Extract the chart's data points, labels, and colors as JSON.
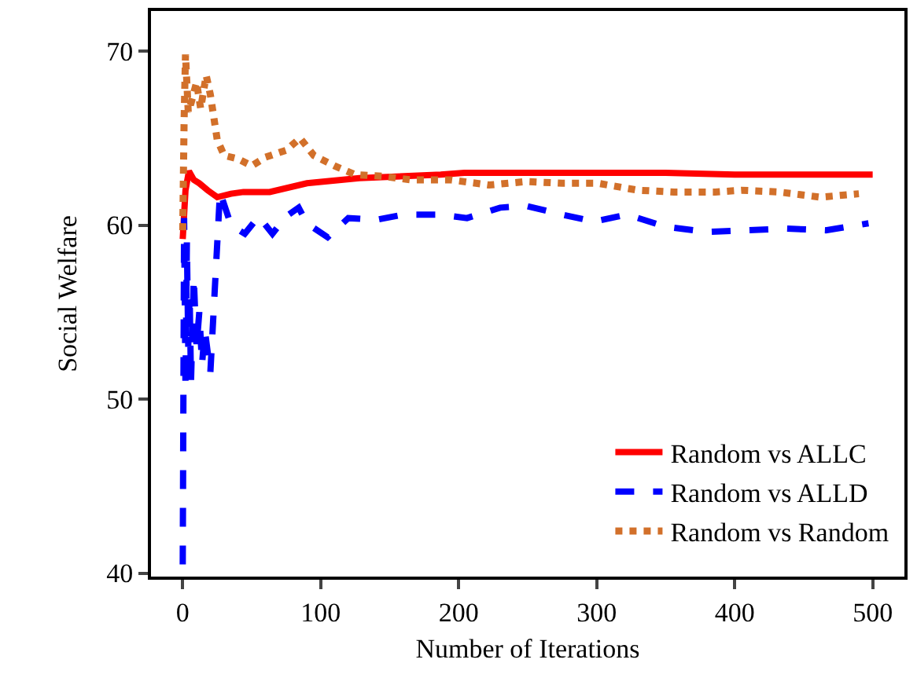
{
  "chart_data": {
    "type": "line",
    "xlabel": "Number of Iterations",
    "ylabel": "Social Welfare",
    "xlim": [
      -23,
      523
    ],
    "ylim": [
      39.8,
      72.3
    ],
    "xticks": [
      0,
      100,
      200,
      300,
      400,
      500
    ],
    "yticks": [
      40,
      50,
      60,
      70
    ],
    "grid": false,
    "legend": "bottom right",
    "marker": "none",
    "series": [
      {
        "name": "Random vs ALLC",
        "color": "#ff0000",
        "line_style": "solid",
        "x": [
          0,
          2,
          4.5,
          8,
          12,
          18,
          25,
          35,
          44,
          63,
          90,
          128,
          187,
          204,
          250,
          300,
          350,
          400,
          450,
          500
        ],
        "values": [
          59.2,
          62,
          63.1,
          62.6,
          62.4,
          62,
          61.6,
          61.8,
          61.9,
          61.9,
          62.4,
          62.7,
          62.9,
          63.0,
          63.0,
          63.0,
          63.0,
          62.9,
          62.9,
          62.9
        ]
      },
      {
        "name": "Random vs ALLD",
        "color": "#0000ff",
        "line_style": "dashed",
        "x": [
          0,
          1,
          2,
          3,
          4,
          5,
          6,
          8,
          10,
          12,
          14,
          16,
          20,
          27,
          35,
          45,
          55,
          65,
          75,
          84,
          90,
          105,
          120,
          140,
          160,
          187,
          206,
          230,
          249,
          275,
          298,
          322,
          350,
          380,
          410,
          436,
          466,
          497
        ],
        "values": [
          40.5,
          60.4,
          50.7,
          59,
          53,
          56,
          51,
          57,
          53,
          55,
          52,
          54,
          51.5,
          61.9,
          60,
          59.5,
          60.5,
          59.5,
          60.5,
          61.0,
          60.1,
          59.3,
          60.4,
          60.3,
          60.6,
          60.6,
          60.4,
          61.0,
          61.1,
          60.6,
          60.2,
          60.6,
          59.9,
          59.6,
          59.7,
          59.8,
          59.7,
          60.1
        ]
      },
      {
        "name": "Random vs Random",
        "color": "#d2702a",
        "line_style": "dotted",
        "x": [
          0,
          1,
          2,
          4,
          6,
          10,
          13,
          17,
          20,
          25,
          30,
          40,
          50,
          60,
          75,
          85,
          95,
          110,
          125,
          145,
          165,
          194,
          222,
          249,
          275,
          301,
          330,
          356,
          386,
          405,
          432,
          462,
          490
        ],
        "values": [
          59.7,
          66,
          69.8,
          66.5,
          67,
          68.2,
          66.7,
          68.6,
          67.5,
          64.9,
          64,
          63.8,
          63.4,
          63.9,
          64.3,
          65.0,
          64.0,
          63.4,
          62.9,
          62.8,
          62.6,
          62.6,
          62.3,
          62.5,
          62.4,
          62.4,
          62.0,
          61.9,
          61.9,
          62.0,
          61.9,
          61.6,
          61.8
        ]
      }
    ]
  }
}
